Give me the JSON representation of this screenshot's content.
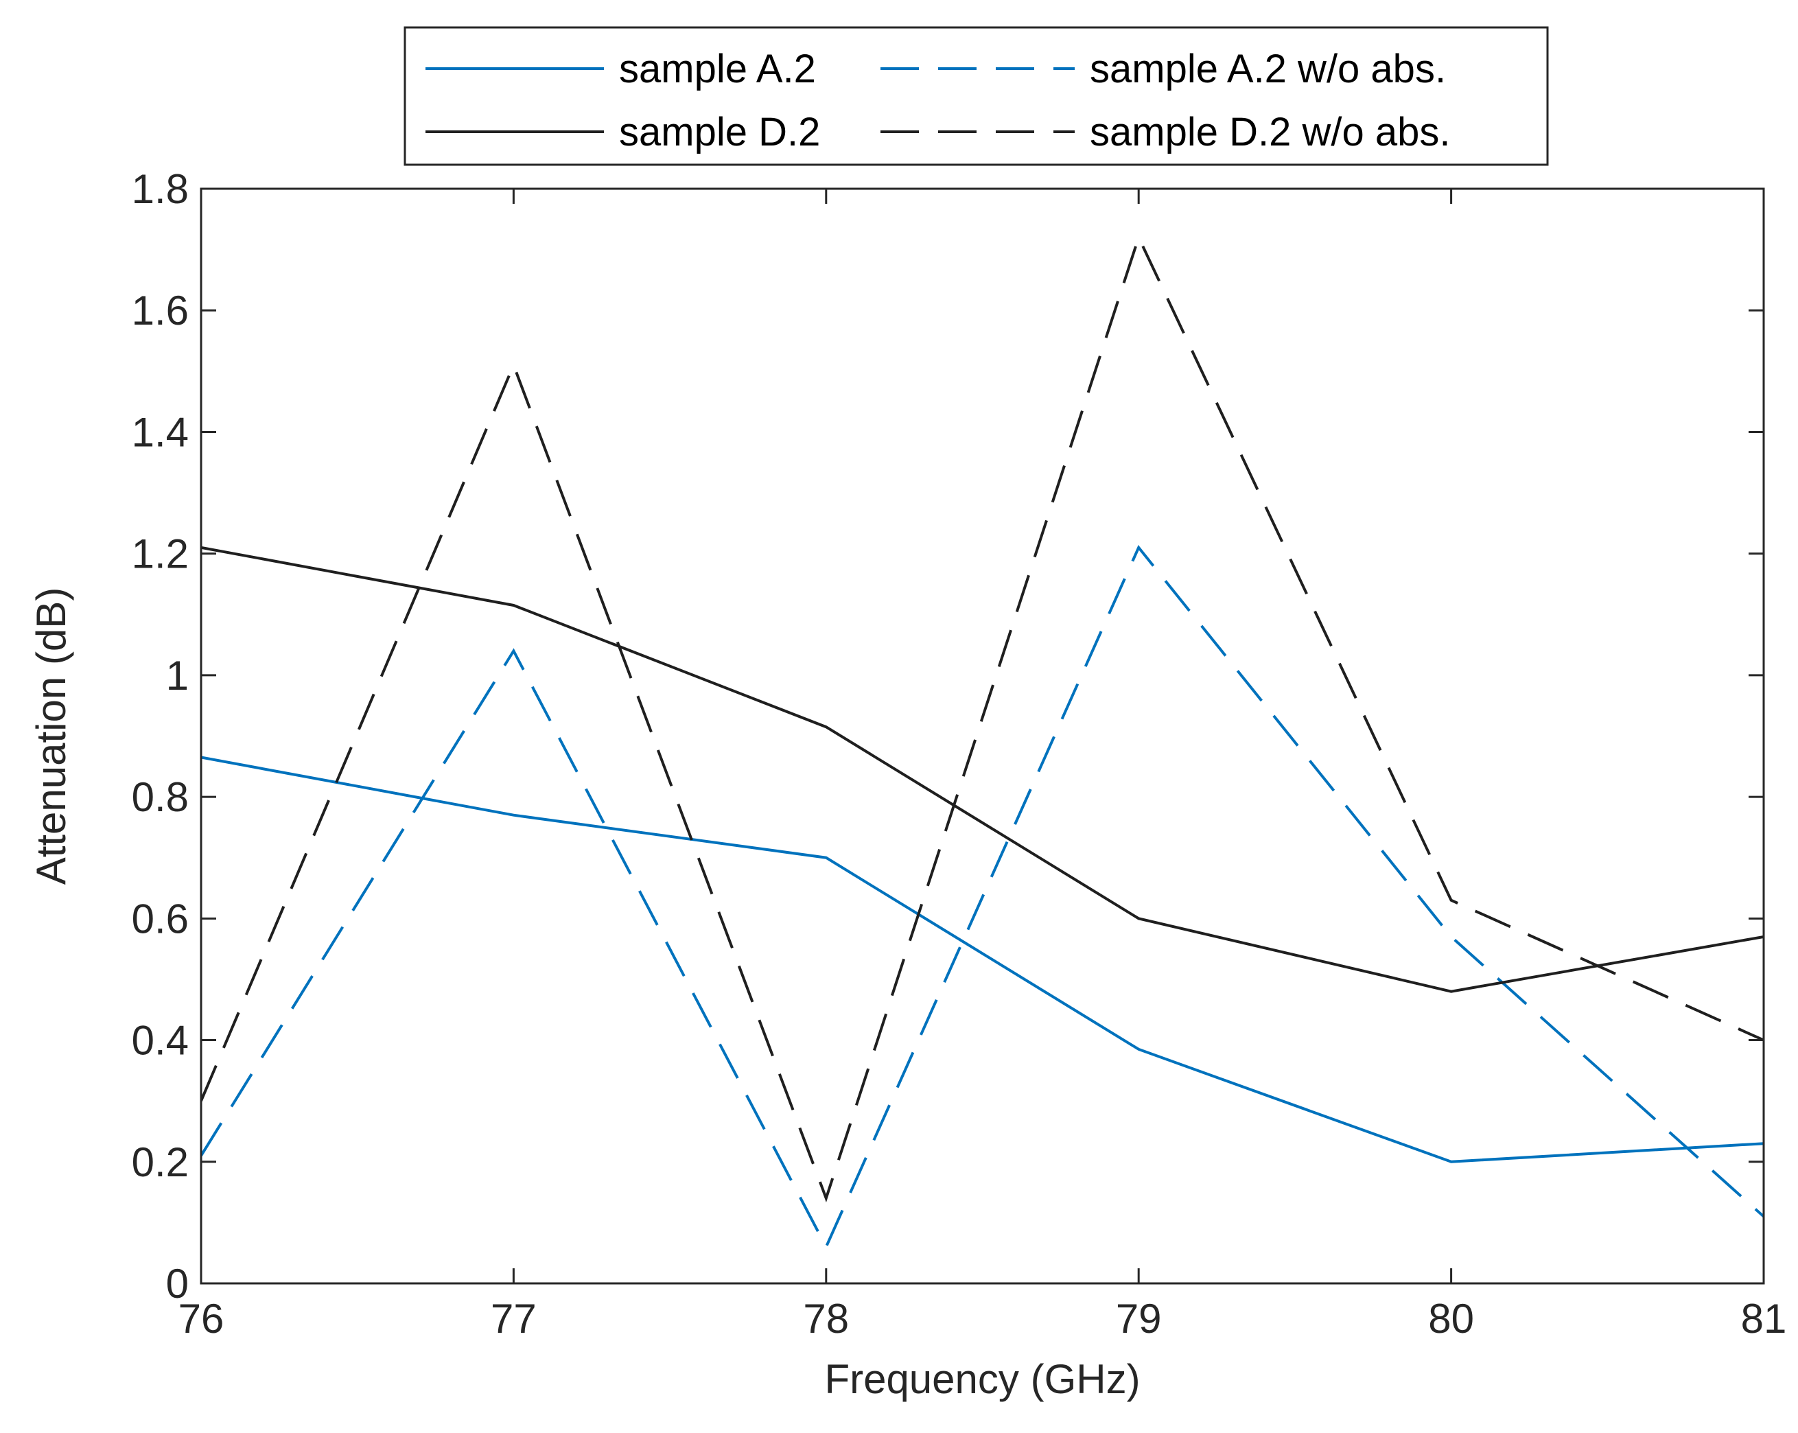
{
  "chart_data": {
    "type": "line",
    "title": "",
    "xlabel": "Frequency (GHz)",
    "ylabel": "Attenuation (dB)",
    "xlim": [
      76,
      81
    ],
    "ylim": [
      0,
      1.8
    ],
    "x": [
      76,
      77,
      78,
      79,
      80,
      81
    ],
    "xticks": [
      "76",
      "77",
      "78",
      "79",
      "80",
      "81"
    ],
    "yticks": [
      "0",
      "0.2",
      "0.4",
      "0.6",
      "0.8",
      "1",
      "1.2",
      "1.4",
      "1.6",
      "1.8"
    ],
    "grid": false,
    "legend_position": "top-outside",
    "series": [
      {
        "name": "sample A.2",
        "color": "#0072bd",
        "style": "solid",
        "values": [
          0.865,
          0.77,
          0.7,
          0.385,
          0.2,
          0.23
        ]
      },
      {
        "name": "sample A.2 w/o abs.",
        "color": "#0072bd",
        "style": "dashed",
        "values": [
          0.21,
          1.04,
          0.06,
          1.21,
          0.57,
          0.11
        ]
      },
      {
        "name": "sample D.2",
        "color": "#1f1f1f",
        "style": "solid",
        "values": [
          1.21,
          1.115,
          0.915,
          0.6,
          0.48,
          0.57
        ]
      },
      {
        "name": "sample D.2 w/o abs.",
        "color": "#1f1f1f",
        "style": "dashed",
        "values": [
          0.3,
          1.51,
          0.14,
          1.72,
          0.63,
          0.4
        ]
      }
    ]
  }
}
